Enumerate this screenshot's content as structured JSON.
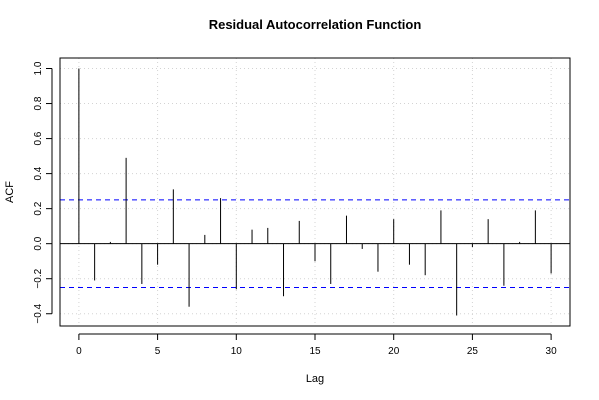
{
  "chart_data": {
    "type": "bar",
    "title": "Residual Autocorrelation Function",
    "xlabel": "Lag",
    "ylabel": "ACF",
    "x": [
      0,
      1,
      2,
      3,
      4,
      5,
      6,
      7,
      8,
      9,
      10,
      11,
      12,
      13,
      14,
      15,
      16,
      17,
      18,
      19,
      20,
      21,
      22,
      23,
      24,
      25,
      26,
      27,
      28,
      29,
      30
    ],
    "values": [
      1.0,
      -0.21,
      0.01,
      0.49,
      -0.23,
      -0.12,
      0.31,
      -0.36,
      0.05,
      0.26,
      -0.26,
      0.08,
      0.09,
      -0.3,
      0.13,
      -0.1,
      -0.23,
      0.16,
      -0.03,
      -0.16,
      0.14,
      -0.12,
      -0.18,
      0.19,
      -0.41,
      -0.02,
      0.14,
      -0.24,
      0.01,
      0.19,
      -0.17
    ],
    "confidence_bounds": [
      0.25,
      -0.25
    ],
    "xlim": [
      -1.2,
      31.2
    ],
    "ylim": [
      -0.47,
      1.06
    ],
    "xticks": [
      0,
      5,
      10,
      15,
      20,
      25,
      30
    ],
    "yticks": [
      -0.4,
      -0.2,
      0.0,
      0.2,
      0.4,
      0.6,
      0.8,
      1.0
    ],
    "ytick_labels": [
      "−0.4",
      "−0.2",
      "0.0",
      "0.2",
      "0.4",
      "0.6",
      "0.8",
      "1.0"
    ],
    "grid": true,
    "colors": {
      "bars": "#000000",
      "bounds": "#0000ff",
      "zero_line": "#000000",
      "grid": "#d3d3d3"
    }
  }
}
